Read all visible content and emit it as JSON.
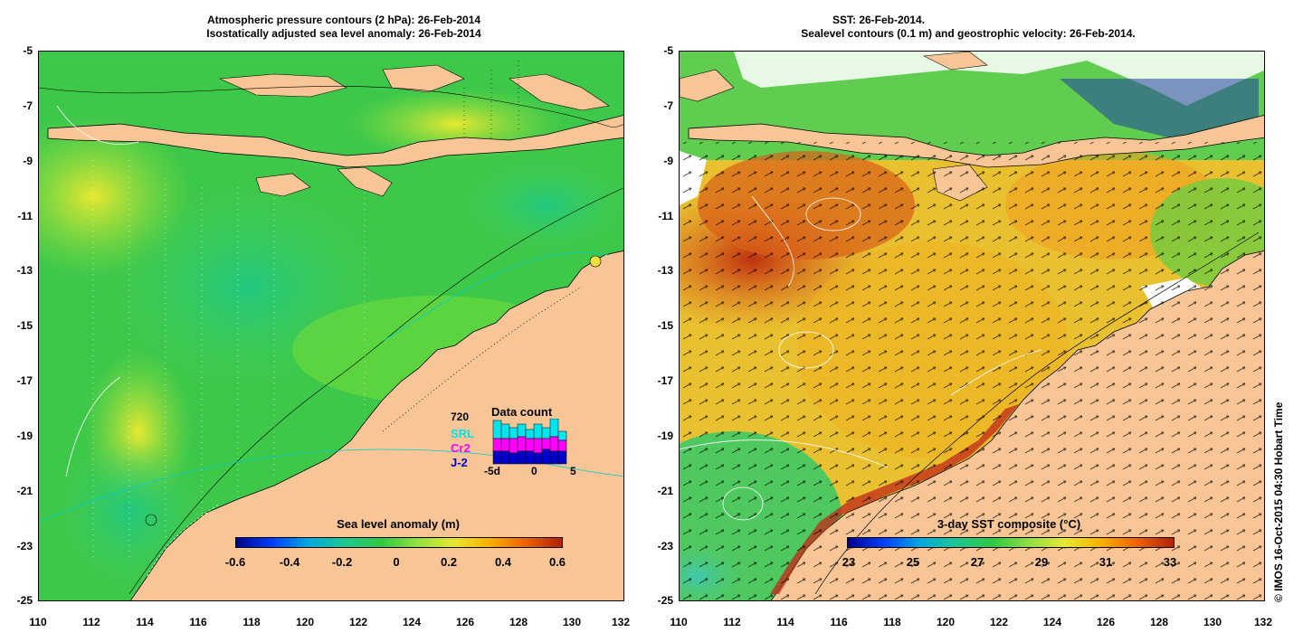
{
  "left_panel": {
    "title_line1": "Atmospheric pressure contours (2 hPa): 26-Feb-2014",
    "title_line2": "Isostatically adjusted sea level anomaly: 26-Feb-2014",
    "colorbar_label": "Sea level anomaly (m)",
    "colorbar_ticks": [
      "-0.6",
      "-0.4",
      "-0.2",
      "0",
      "0.2",
      "0.4",
      "0.6"
    ],
    "data_count": {
      "title": "Data count",
      "total": "720",
      "missions": [
        "SRL",
        "Cr2",
        "J-2"
      ],
      "mission_colors": [
        "#00e5ee",
        "#ff00ff",
        "#0000cc"
      ],
      "axis_ticks": [
        "-5d",
        "0",
        "5"
      ]
    }
  },
  "right_panel": {
    "title_line1": "SST: 26-Feb-2014.",
    "title_line2": "Sealevel contours (0.1 m) and geostrophic velocity: 26-Feb-2014.",
    "colorbar_label": "3-day SST composite (°C)",
    "colorbar_ticks": [
      "23",
      "25",
      "27",
      "29",
      "31",
      "33"
    ]
  },
  "axes": {
    "y_ticks": [
      "-5",
      "-7",
      "-9",
      "-11",
      "-13",
      "-15",
      "-17",
      "-19",
      "-21",
      "-23",
      "-25"
    ],
    "x_ticks": [
      "110",
      "112",
      "114",
      "116",
      "118",
      "120",
      "122",
      "124",
      "126",
      "128",
      "130",
      "132"
    ]
  },
  "credit": "© IMOS 16-Oct-2015 04:30 Hobart Time",
  "colors": {
    "land": "#f8c696",
    "coast": "#000000"
  }
}
